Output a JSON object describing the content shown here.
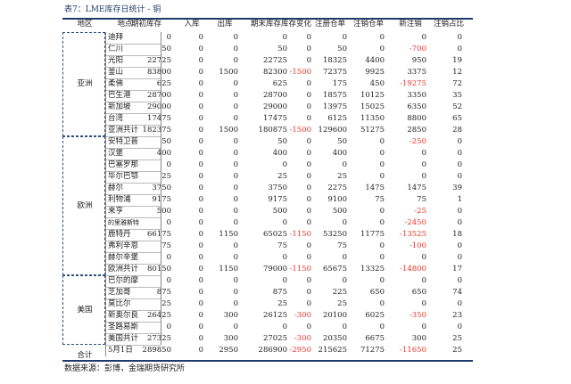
{
  "title": "表7：LME库存日统计 - 铜",
  "header": [
    "地区",
    "地点",
    "期初库存",
    "入库",
    "出库",
    "期末库存",
    "库存变化",
    "注册仓单",
    "注销仓单",
    "新注销",
    "注销占比"
  ],
  "regions": [
    {
      "name": "亚洲",
      "rows": [
        [
          "迪拜",
          0,
          0,
          0,
          0,
          0,
          0,
          0,
          0,
          0
        ],
        [
          "仁川",
          50,
          0,
          0,
          50,
          0,
          50,
          0,
          -700,
          0
        ],
        [
          "光阳",
          22725,
          0,
          0,
          22725,
          0,
          18325,
          4400,
          950,
          19
        ],
        [
          "釜山",
          83800,
          0,
          1500,
          82300,
          -1500,
          72375,
          9925,
          3375,
          12
        ],
        [
          "柔佛",
          625,
          0,
          0,
          625,
          0,
          175,
          450,
          -19275,
          72
        ],
        [
          "巴生港",
          28700,
          0,
          0,
          28700,
          0,
          18575,
          10125,
          3350,
          35
        ],
        [
          "新加坡",
          29000,
          0,
          0,
          29000,
          0,
          13975,
          15025,
          6350,
          52
        ],
        [
          "台湾",
          17475,
          0,
          0,
          17475,
          0,
          6125,
          11350,
          8800,
          65
        ],
        [
          "亚洲共计",
          182375,
          0,
          1500,
          180875,
          -1500,
          129600,
          51275,
          2850,
          28
        ]
      ]
    },
    {
      "name": "欧洲",
      "rows": [
        [
          "安特卫普",
          50,
          0,
          0,
          50,
          0,
          50,
          0,
          -250,
          0
        ],
        [
          "汉堡",
          400,
          0,
          0,
          400,
          0,
          400,
          0,
          0,
          0
        ],
        [
          "巴塞罗那",
          0,
          0,
          0,
          0,
          0,
          0,
          0,
          0,
          0
        ],
        [
          "毕尔巴鄂",
          25,
          0,
          0,
          25,
          0,
          25,
          0,
          0,
          0
        ],
        [
          "赫尔",
          3750,
          0,
          0,
          3750,
          0,
          2275,
          1475,
          1475,
          39
        ],
        [
          "利物浦",
          9175,
          0,
          0,
          9175,
          0,
          9100,
          75,
          75,
          1
        ],
        [
          "来亨",
          500,
          0,
          0,
          500,
          0,
          500,
          0,
          -25,
          0
        ],
        [
          "的里雅斯特",
          0,
          0,
          0,
          0,
          0,
          0,
          0,
          -2450,
          0
        ],
        [
          "鹿特丹",
          66175,
          0,
          1150,
          65025,
          -1150,
          53250,
          11775,
          -13525,
          18
        ],
        [
          "弗利辛恩",
          75,
          0,
          0,
          75,
          0,
          75,
          0,
          -100,
          0
        ],
        [
          "赫尔辛堡",
          0,
          0,
          0,
          0,
          0,
          0,
          0,
          0,
          0
        ],
        [
          "欧洲共计",
          80150,
          0,
          1150,
          79000,
          -1150,
          65675,
          13325,
          -14800,
          17
        ]
      ]
    },
    {
      "name": "美国",
      "rows": [
        [
          "巴尔的摩",
          0,
          0,
          0,
          0,
          0,
          0,
          0,
          0,
          0
        ],
        [
          "芝加哥",
          875,
          0,
          0,
          875,
          0,
          225,
          650,
          650,
          74
        ],
        [
          "莫比尔",
          25,
          0,
          0,
          25,
          0,
          25,
          0,
          0,
          0
        ],
        [
          "新奥尔良",
          26425,
          0,
          300,
          26125,
          -300,
          20100,
          6025,
          -350,
          23
        ],
        [
          "圣路易斯",
          0,
          0,
          0,
          0,
          0,
          0,
          0,
          0,
          0
        ],
        [
          "美国共计",
          27325,
          0,
          300,
          27025,
          -300,
          20350,
          6675,
          300,
          25
        ]
      ]
    }
  ],
  "total": {
    "label": "合计",
    "row": [
      "5月1日",
      289850,
      0,
      2950,
      286900,
      -2950,
      215625,
      71275,
      -11650,
      25
    ]
  },
  "source": "数据来源：彭博，金瑞期货研究所"
}
